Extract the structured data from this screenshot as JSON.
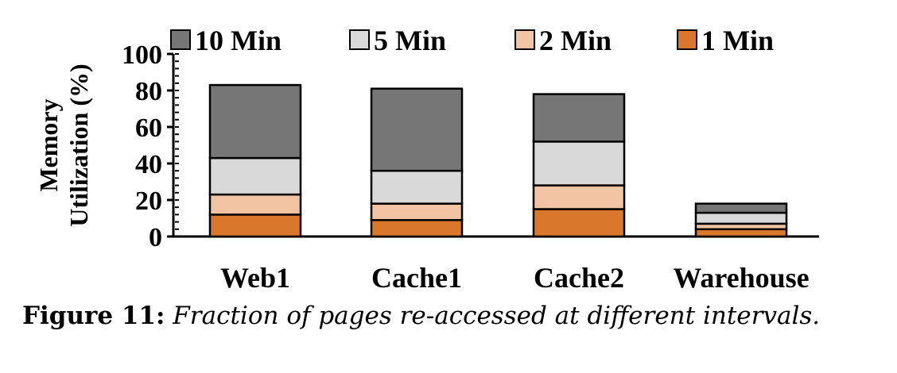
{
  "chart_data": {
    "type": "bar",
    "stacked": true,
    "categories": [
      "Web1",
      "Cache1",
      "Cache2",
      "Warehouse"
    ],
    "series": [
      {
        "name": "1 Min",
        "color": "#d9782d",
        "values": [
          12,
          9,
          15,
          4
        ]
      },
      {
        "name": "2 Min",
        "color": "#f2c4a4",
        "values": [
          11,
          9,
          13,
          3
        ]
      },
      {
        "name": "5 Min",
        "color": "#d9d9d9",
        "values": [
          20,
          18,
          24,
          6
        ]
      },
      {
        "name": "10 Min",
        "color": "#767676",
        "values": [
          40,
          45,
          26,
          5
        ]
      }
    ],
    "legend_order": [
      "10 Min",
      "5 Min",
      "2 Min",
      "1 Min"
    ],
    "legend_position": "top",
    "ylabel_lines": [
      "Memory",
      "Utilization (%)"
    ],
    "xlabel": "",
    "ylim": [
      0,
      100
    ],
    "yticks": [
      "0",
      "20",
      "40",
      "60",
      "80",
      "100"
    ],
    "grid": false
  },
  "caption": {
    "label": "Figure 11:",
    "text": "Fraction of pages re-accessed at different intervals."
  }
}
